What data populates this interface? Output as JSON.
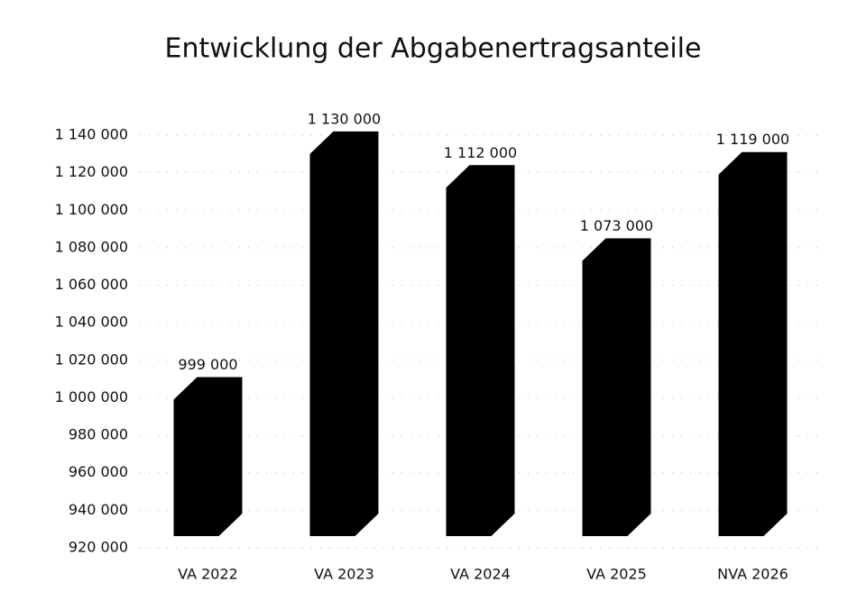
{
  "chart_data": {
    "type": "bar3d",
    "title": "Entwicklung der Abgabenertragsanteile",
    "categories": [
      "VA 2022",
      "VA 2023",
      "VA 2024",
      "VA 2025",
      "NVA 2026"
    ],
    "values": [
      999000,
      1130000,
      1112000,
      1073000,
      1119000
    ],
    "value_labels": [
      "999 000",
      "1 130 000",
      "1 112 000",
      "1 073 000",
      "1 119 000"
    ],
    "color": "#000000",
    "ylim": [
      920000,
      1140000
    ],
    "yticks": [
      {
        "value": 920000,
        "label": "920 000"
      },
      {
        "value": 940000,
        "label": "940 000"
      },
      {
        "value": 960000,
        "label": "960 000"
      },
      {
        "value": 980000,
        "label": "980 000"
      },
      {
        "value": 1000000,
        "label": "1 000 000"
      },
      {
        "value": 1020000,
        "label": "1 020 000"
      },
      {
        "value": 1040000,
        "label": "1 040 000"
      },
      {
        "value": 1060000,
        "label": "1 060 000"
      },
      {
        "value": 1080000,
        "label": "1 080 000"
      },
      {
        "value": 1100000,
        "label": "1 100 000"
      },
      {
        "value": 1120000,
        "label": "1 120 000"
      },
      {
        "value": 1140000,
        "label": "1 140 000"
      }
    ],
    "grid": true
  }
}
